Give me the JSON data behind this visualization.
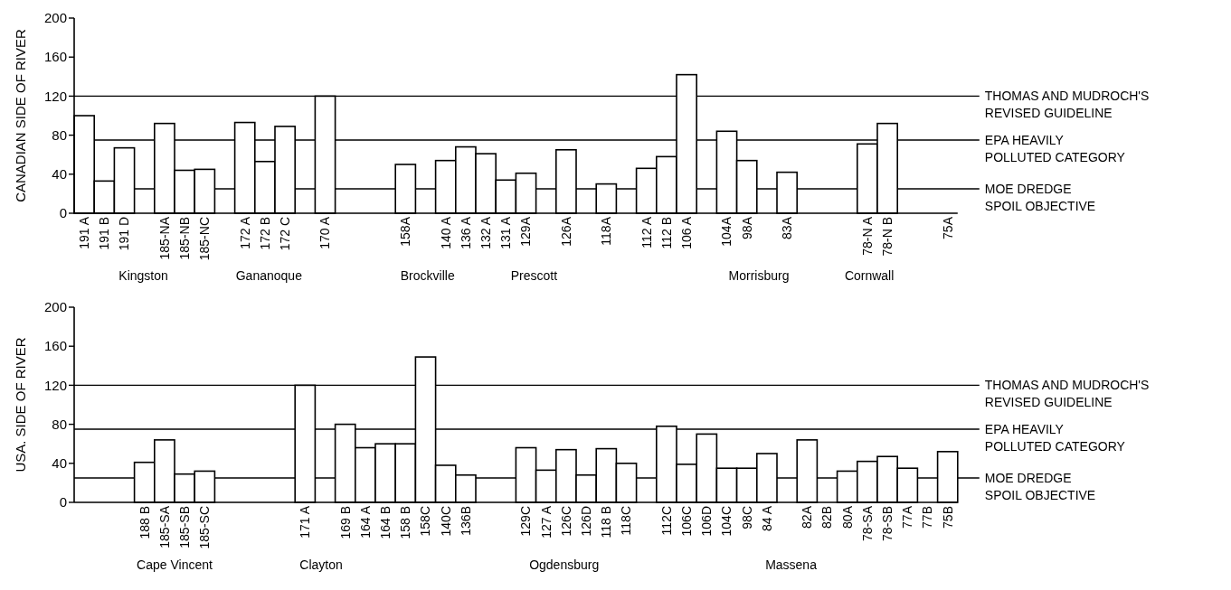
{
  "chart_data": [
    {
      "type": "bar",
      "ylabel": "CANADIAN SIDE OF RIVER",
      "ylim": [
        0,
        200
      ],
      "yticks": [
        0,
        40,
        80,
        120,
        160,
        200
      ],
      "grid": false,
      "categories": [
        "191 A",
        "191 B",
        "191 D",
        null,
        "185-NA",
        "185-NB",
        "185-NC",
        null,
        "172 A",
        "172 B",
        "172 C",
        null,
        "170 A",
        null,
        null,
        null,
        "158A",
        null,
        "140 A",
        "136 A",
        "132 A",
        "131 A",
        "129A",
        null,
        "126A",
        null,
        "118A",
        null,
        "112 A",
        "112 B",
        "106 A",
        null,
        "104A",
        "98A",
        null,
        "83A",
        null,
        null,
        null,
        "78-N A",
        "78-N B",
        null,
        null,
        "75A"
      ],
      "series": [
        {
          "color": "#ffffff",
          "values": [
            100,
            33,
            67,
            null,
            92,
            44,
            45,
            null,
            93,
            53,
            89,
            null,
            120,
            null,
            null,
            null,
            50,
            null,
            54,
            68,
            61,
            34,
            41,
            null,
            65,
            null,
            30,
            null,
            46,
            58,
            142,
            null,
            84,
            54,
            null,
            42,
            null,
            null,
            null,
            71,
            92,
            null,
            null,
            null
          ]
        }
      ],
      "ref_lines": [
        {
          "axis": "y",
          "value": 120,
          "label": "THOMAS AND MUDROCH'S\nREVISED GUIDELINE"
        },
        {
          "axis": "y",
          "value": 75,
          "label": "EPA HEAVILY\nPOLLUTED CATEGORY"
        },
        {
          "axis": "y",
          "value": 25,
          "label": "MOE DREDGE\nSPOIL OBJECTIVE"
        }
      ],
      "annotations": [
        "Kingston",
        "Gananoque",
        "Brockville",
        "Prescott",
        "Morrisburg",
        "Cornwall"
      ]
    },
    {
      "type": "bar",
      "ylabel": "USA. SIDE OF RIVER",
      "ylim": [
        0,
        200
      ],
      "yticks": [
        0,
        40,
        80,
        120,
        160,
        200
      ],
      "grid": false,
      "categories": [
        null,
        null,
        null,
        "188 B",
        "185-SA",
        "185-SB",
        "185-SC",
        null,
        null,
        null,
        null,
        "171 A",
        null,
        "169 B",
        "164 A",
        "164 B",
        "158 B",
        "158C",
        "140C",
        "136B",
        null,
        null,
        "129C",
        "127 A",
        "126C",
        "126D",
        "118 B",
        "118C",
        null,
        "112C",
        "106C",
        "106D",
        "104C",
        "98C",
        "84 A",
        null,
        "82A",
        "82B",
        "80A",
        "78-SA",
        "78-SB",
        "77A",
        "77B",
        "75B"
      ],
      "series": [
        {
          "color": "#ffffff",
          "values": [
            null,
            null,
            null,
            41,
            64,
            29,
            32,
            null,
            null,
            null,
            null,
            120,
            null,
            80,
            56,
            60,
            60,
            149,
            38,
            28,
            null,
            null,
            56,
            33,
            54,
            28,
            55,
            40,
            null,
            78,
            39,
            70,
            35,
            35,
            50,
            null,
            64,
            null,
            32,
            42,
            47,
            35,
            null,
            52
          ]
        }
      ],
      "ref_lines": [
        {
          "axis": "y",
          "value": 120,
          "label": "THOMAS AND MUDROCH'S\nREVISED GUIDELINE"
        },
        {
          "axis": "y",
          "value": 75,
          "label": "EPA HEAVILY\nPOLLUTED CATEGORY"
        },
        {
          "axis": "y",
          "value": 25,
          "label": "MOE DREDGE\nSPOIL OBJECTIVE"
        }
      ],
      "annotations": [
        "Cape Vincent",
        "Clayton",
        "Ogdensburg",
        "Massena"
      ]
    }
  ]
}
